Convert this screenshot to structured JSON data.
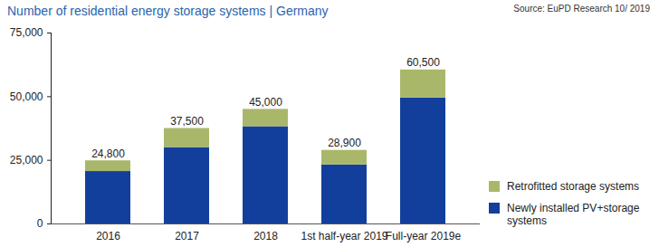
{
  "chart_data": {
    "type": "bar",
    "stacked": true,
    "title": "Number of residential energy storage systems | Germany",
    "subtitle": "Source: EuPD Research 10/ 2019",
    "categories": [
      "2016",
      "2017",
      "2018",
      "1st half-year 2019",
      "Full-year 2019e"
    ],
    "series": [
      {
        "name": "Newly installed PV+storage systems",
        "color": "#133f9c",
        "values": [
          20600,
          30000,
          38200,
          23200,
          49500
        ]
      },
      {
        "name": "Retrofitted storage systems",
        "color": "#a9b76b",
        "values": [
          4200,
          7500,
          6800,
          5700,
          11000
        ]
      }
    ],
    "totals": [
      24800,
      37500,
      45000,
      28900,
      60500
    ],
    "total_labels": [
      "24,800",
      "37,500",
      "45,000",
      "28,900",
      "60,500"
    ],
    "ylim": [
      0,
      75000
    ],
    "yticks": [
      0,
      {
        "value": 25000,
        "label": "25,000"
      },
      {
        "value": 50000,
        "label": "50,000"
      },
      {
        "value": 75000,
        "label": "75,000"
      }
    ],
    "grid": false,
    "legend": "right"
  }
}
